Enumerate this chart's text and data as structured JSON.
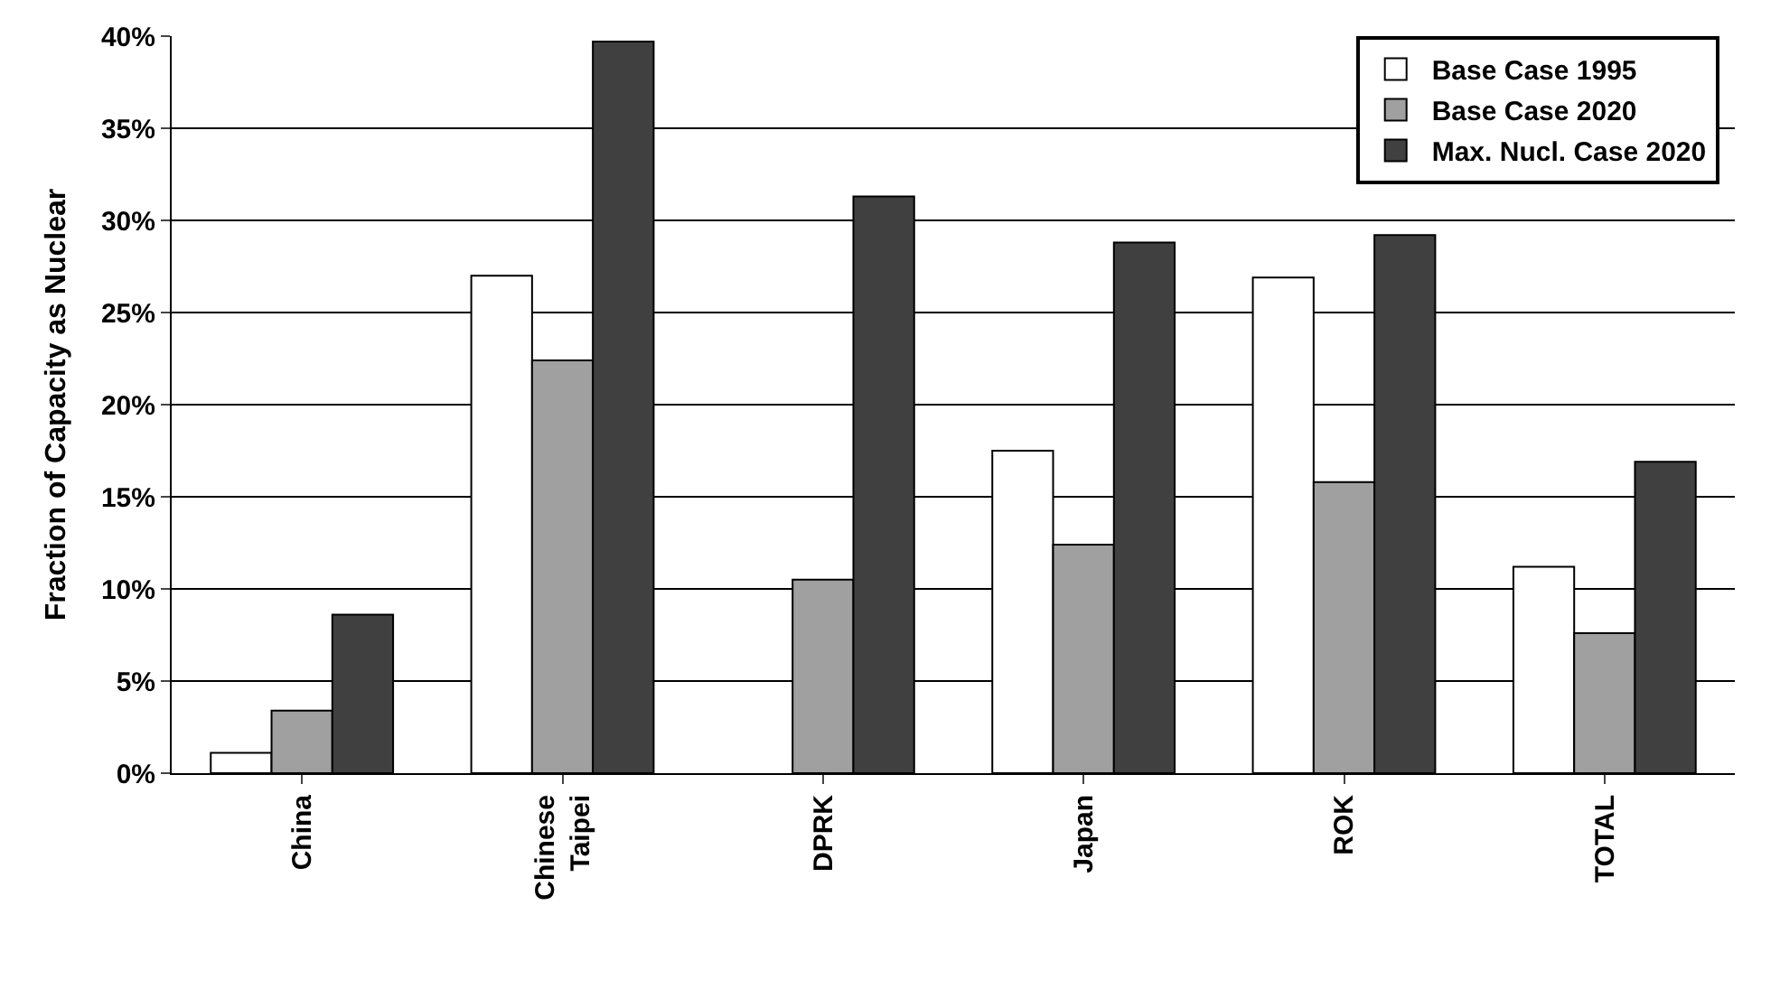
{
  "chart_data": {
    "type": "bar",
    "ylabel": "Fraction of Capacity as Nuclear",
    "categories": [
      "China",
      "Chinese\nTaipei",
      "DPRK",
      "Japan",
      "ROK",
      "TOTAL"
    ],
    "series": [
      {
        "name": "Base Case 1995",
        "color": "#ffffff",
        "values": [
          1.1,
          27.0,
          null,
          17.5,
          26.9,
          11.2
        ]
      },
      {
        "name": "Base Case 2020",
        "color": "#a0a0a0",
        "values": [
          3.4,
          22.4,
          10.5,
          12.4,
          15.8,
          7.6
        ]
      },
      {
        "name": "Max. Nucl. Case 2020",
        "color": "#404040",
        "values": [
          8.6,
          39.7,
          31.3,
          28.8,
          29.2,
          16.9
        ]
      }
    ],
    "ylim": [
      0,
      40
    ],
    "yticks": [
      {
        "value": 0,
        "label": "0%"
      },
      {
        "value": 5,
        "label": "5%"
      },
      {
        "value": 10,
        "label": "10%"
      },
      {
        "value": 15,
        "label": "15%"
      },
      {
        "value": 20,
        "label": "20%"
      },
      {
        "value": 25,
        "label": "25%"
      },
      {
        "value": 30,
        "label": "30%"
      },
      {
        "value": 35,
        "label": "35%"
      },
      {
        "value": 40,
        "label": "40%"
      }
    ],
    "grid": "y",
    "legend": "top right"
  }
}
